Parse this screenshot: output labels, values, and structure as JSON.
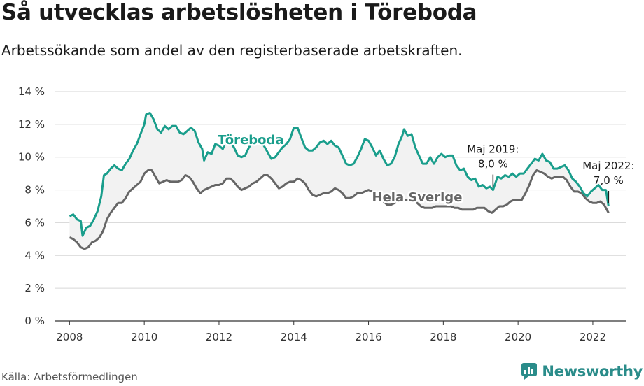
{
  "header": {
    "title": "Så utvecklas arbetslösheten i Töreboda",
    "subtitle": "Arbetssökande som andel av den registerbaserade arbetskraften."
  },
  "footer": {
    "source": "Källa: Arbetsförmedlingen",
    "brand": "Newsworthy",
    "brand_color": "#2a8c8a"
  },
  "colors": {
    "toreboda": "#1a9e8c",
    "sverige": "#666666",
    "band": "#f2f2f2",
    "grid": "#d6d6d6"
  },
  "chart_data": {
    "type": "line",
    "title": "Så utvecklas arbetslösheten i Töreboda",
    "subtitle": "Arbetssökande som andel av den registerbaserade arbetskraften.",
    "xlabel": "",
    "ylabel": "",
    "xlim": [
      2007.6,
      2022.9
    ],
    "ylim": [
      0,
      14
    ],
    "x_ticks": [
      2008,
      2010,
      2012,
      2014,
      2016,
      2018,
      2020,
      2022
    ],
    "x_tick_labels": [
      "2008",
      "2010",
      "2012",
      "2014",
      "2016",
      "2018",
      "2020",
      "2022"
    ],
    "y_ticks": [
      0,
      2,
      4,
      6,
      8,
      10,
      12,
      14
    ],
    "y_tick_labels": [
      "0 %",
      "2 %",
      "4 %",
      "6 %",
      "8 %",
      "10 %",
      "12 %",
      "14 %"
    ],
    "grid": true,
    "legend": "inline labels",
    "series": [
      {
        "name": "Töreboda",
        "points": [
          [
            2008.0,
            6.4
          ],
          [
            2008.1,
            6.5
          ],
          [
            2008.2,
            6.2
          ],
          [
            2008.3,
            6.1
          ],
          [
            2008.35,
            5.2
          ],
          [
            2008.45,
            5.7
          ],
          [
            2008.55,
            5.8
          ],
          [
            2008.65,
            6.2
          ],
          [
            2008.75,
            6.7
          ],
          [
            2008.85,
            7.6
          ],
          [
            2008.92,
            8.9
          ],
          [
            2009.0,
            9.0
          ],
          [
            2009.1,
            9.3
          ],
          [
            2009.2,
            9.5
          ],
          [
            2009.3,
            9.3
          ],
          [
            2009.4,
            9.2
          ],
          [
            2009.5,
            9.6
          ],
          [
            2009.6,
            9.9
          ],
          [
            2009.7,
            10.4
          ],
          [
            2009.8,
            10.8
          ],
          [
            2009.9,
            11.4
          ],
          [
            2010.0,
            12.0
          ],
          [
            2010.05,
            12.6
          ],
          [
            2010.15,
            12.7
          ],
          [
            2010.25,
            12.3
          ],
          [
            2010.35,
            11.7
          ],
          [
            2010.45,
            11.5
          ],
          [
            2010.55,
            11.9
          ],
          [
            2010.65,
            11.7
          ],
          [
            2010.75,
            11.9
          ],
          [
            2010.85,
            11.9
          ],
          [
            2010.95,
            11.5
          ],
          [
            2011.05,
            11.4
          ],
          [
            2011.15,
            11.6
          ],
          [
            2011.25,
            11.8
          ],
          [
            2011.35,
            11.6
          ],
          [
            2011.45,
            10.9
          ],
          [
            2011.55,
            10.5
          ],
          [
            2011.6,
            9.8
          ],
          [
            2011.7,
            10.3
          ],
          [
            2011.8,
            10.2
          ],
          [
            2011.9,
            10.8
          ],
          [
            2012.0,
            10.7
          ],
          [
            2012.1,
            10.5
          ],
          [
            2012.2,
            11.0
          ],
          [
            2012.3,
            10.9
          ],
          [
            2012.4,
            10.6
          ],
          [
            2012.5,
            10.1
          ],
          [
            2012.6,
            10.0
          ],
          [
            2012.7,
            10.1
          ],
          [
            2012.8,
            10.6
          ],
          [
            2012.9,
            10.9
          ],
          [
            2013.0,
            11.2
          ],
          [
            2013.1,
            11.0
          ],
          [
            2013.2,
            10.7
          ],
          [
            2013.3,
            10.3
          ],
          [
            2013.4,
            9.9
          ],
          [
            2013.5,
            10.0
          ],
          [
            2013.6,
            10.3
          ],
          [
            2013.7,
            10.6
          ],
          [
            2013.8,
            10.8
          ],
          [
            2013.9,
            11.1
          ],
          [
            2014.0,
            11.8
          ],
          [
            2014.1,
            11.8
          ],
          [
            2014.2,
            11.2
          ],
          [
            2014.3,
            10.6
          ],
          [
            2014.4,
            10.4
          ],
          [
            2014.5,
            10.4
          ],
          [
            2014.6,
            10.6
          ],
          [
            2014.7,
            10.9
          ],
          [
            2014.8,
            11.0
          ],
          [
            2014.9,
            10.8
          ],
          [
            2015.0,
            11.0
          ],
          [
            2015.1,
            10.7
          ],
          [
            2015.2,
            10.6
          ],
          [
            2015.3,
            10.1
          ],
          [
            2015.4,
            9.6
          ],
          [
            2015.5,
            9.5
          ],
          [
            2015.6,
            9.6
          ],
          [
            2015.7,
            10.0
          ],
          [
            2015.8,
            10.5
          ],
          [
            2015.9,
            11.1
          ],
          [
            2016.0,
            11.0
          ],
          [
            2016.1,
            10.6
          ],
          [
            2016.2,
            10.1
          ],
          [
            2016.3,
            10.4
          ],
          [
            2016.4,
            9.9
          ],
          [
            2016.5,
            9.5
          ],
          [
            2016.6,
            9.6
          ],
          [
            2016.7,
            10.0
          ],
          [
            2016.8,
            10.8
          ],
          [
            2016.9,
            11.3
          ],
          [
            2016.95,
            11.7
          ],
          [
            2017.05,
            11.3
          ],
          [
            2017.15,
            11.4
          ],
          [
            2017.25,
            10.6
          ],
          [
            2017.35,
            10.1
          ],
          [
            2017.45,
            9.6
          ],
          [
            2017.55,
            9.6
          ],
          [
            2017.65,
            10.0
          ],
          [
            2017.75,
            9.6
          ],
          [
            2017.85,
            10.0
          ],
          [
            2017.95,
            10.2
          ],
          [
            2018.05,
            10.0
          ],
          [
            2018.15,
            10.1
          ],
          [
            2018.25,
            10.1
          ],
          [
            2018.35,
            9.5
          ],
          [
            2018.45,
            9.2
          ],
          [
            2018.55,
            9.3
          ],
          [
            2018.65,
            8.8
          ],
          [
            2018.75,
            8.6
          ],
          [
            2018.85,
            8.7
          ],
          [
            2018.95,
            8.2
          ],
          [
            2019.05,
            8.3
          ],
          [
            2019.15,
            8.1
          ],
          [
            2019.25,
            8.2
          ],
          [
            2019.33,
            8.0
          ],
          [
            2019.45,
            8.8
          ],
          [
            2019.55,
            8.7
          ],
          [
            2019.65,
            8.9
          ],
          [
            2019.75,
            8.8
          ],
          [
            2019.85,
            9.0
          ],
          [
            2019.95,
            8.8
          ],
          [
            2020.05,
            9.0
          ],
          [
            2020.15,
            9.0
          ],
          [
            2020.25,
            9.3
          ],
          [
            2020.35,
            9.6
          ],
          [
            2020.45,
            9.9
          ],
          [
            2020.55,
            9.8
          ],
          [
            2020.65,
            10.2
          ],
          [
            2020.75,
            9.8
          ],
          [
            2020.85,
            9.7
          ],
          [
            2020.95,
            9.3
          ],
          [
            2021.05,
            9.3
          ],
          [
            2021.15,
            9.4
          ],
          [
            2021.25,
            9.5
          ],
          [
            2021.35,
            9.2
          ],
          [
            2021.45,
            8.7
          ],
          [
            2021.55,
            8.5
          ],
          [
            2021.65,
            8.2
          ],
          [
            2021.75,
            7.8
          ],
          [
            2021.85,
            7.6
          ],
          [
            2021.95,
            7.9
          ],
          [
            2022.05,
            8.1
          ],
          [
            2022.15,
            8.3
          ],
          [
            2022.25,
            8.0
          ],
          [
            2022.35,
            8.0
          ],
          [
            2022.42,
            7.0
          ]
        ]
      },
      {
        "name": "Hela Sverige",
        "points": [
          [
            2008.0,
            5.1
          ],
          [
            2008.1,
            5.0
          ],
          [
            2008.2,
            4.8
          ],
          [
            2008.3,
            4.5
          ],
          [
            2008.4,
            4.4
          ],
          [
            2008.5,
            4.5
          ],
          [
            2008.6,
            4.8
          ],
          [
            2008.7,
            4.9
          ],
          [
            2008.8,
            5.1
          ],
          [
            2008.9,
            5.5
          ],
          [
            2009.0,
            6.2
          ],
          [
            2009.1,
            6.6
          ],
          [
            2009.2,
            6.9
          ],
          [
            2009.3,
            7.2
          ],
          [
            2009.4,
            7.2
          ],
          [
            2009.5,
            7.5
          ],
          [
            2009.6,
            7.9
          ],
          [
            2009.7,
            8.1
          ],
          [
            2009.8,
            8.3
          ],
          [
            2009.9,
            8.5
          ],
          [
            2010.0,
            9.0
          ],
          [
            2010.1,
            9.2
          ],
          [
            2010.2,
            9.2
          ],
          [
            2010.3,
            8.8
          ],
          [
            2010.4,
            8.4
          ],
          [
            2010.5,
            8.5
          ],
          [
            2010.6,
            8.6
          ],
          [
            2010.7,
            8.5
          ],
          [
            2010.8,
            8.5
          ],
          [
            2010.9,
            8.5
          ],
          [
            2011.0,
            8.6
          ],
          [
            2011.1,
            8.9
          ],
          [
            2011.2,
            8.8
          ],
          [
            2011.3,
            8.5
          ],
          [
            2011.4,
            8.1
          ],
          [
            2011.5,
            7.8
          ],
          [
            2011.6,
            8.0
          ],
          [
            2011.7,
            8.1
          ],
          [
            2011.8,
            8.2
          ],
          [
            2011.9,
            8.3
          ],
          [
            2012.0,
            8.3
          ],
          [
            2012.1,
            8.4
          ],
          [
            2012.2,
            8.7
          ],
          [
            2012.3,
            8.7
          ],
          [
            2012.4,
            8.5
          ],
          [
            2012.5,
            8.2
          ],
          [
            2012.6,
            8.0
          ],
          [
            2012.7,
            8.1
          ],
          [
            2012.8,
            8.2
          ],
          [
            2012.9,
            8.4
          ],
          [
            2013.0,
            8.5
          ],
          [
            2013.1,
            8.7
          ],
          [
            2013.2,
            8.9
          ],
          [
            2013.3,
            8.9
          ],
          [
            2013.4,
            8.7
          ],
          [
            2013.5,
            8.4
          ],
          [
            2013.6,
            8.1
          ],
          [
            2013.7,
            8.2
          ],
          [
            2013.8,
            8.4
          ],
          [
            2013.9,
            8.5
          ],
          [
            2014.0,
            8.5
          ],
          [
            2014.1,
            8.7
          ],
          [
            2014.2,
            8.6
          ],
          [
            2014.3,
            8.4
          ],
          [
            2014.4,
            8.0
          ],
          [
            2014.5,
            7.7
          ],
          [
            2014.6,
            7.6
          ],
          [
            2014.7,
            7.7
          ],
          [
            2014.8,
            7.8
          ],
          [
            2014.9,
            7.8
          ],
          [
            2015.0,
            7.9
          ],
          [
            2015.1,
            8.1
          ],
          [
            2015.2,
            8.0
          ],
          [
            2015.3,
            7.8
          ],
          [
            2015.4,
            7.5
          ],
          [
            2015.5,
            7.5
          ],
          [
            2015.6,
            7.6
          ],
          [
            2015.7,
            7.8
          ],
          [
            2015.8,
            7.8
          ],
          [
            2015.9,
            7.9
          ],
          [
            2016.0,
            8.0
          ],
          [
            2016.1,
            7.9
          ],
          [
            2016.2,
            7.7
          ],
          [
            2016.3,
            7.5
          ],
          [
            2016.4,
            7.3
          ],
          [
            2016.5,
            7.1
          ],
          [
            2016.6,
            7.1
          ],
          [
            2016.7,
            7.2
          ],
          [
            2016.8,
            7.3
          ],
          [
            2016.9,
            7.4
          ],
          [
            2017.0,
            7.4
          ],
          [
            2017.1,
            7.4
          ],
          [
            2017.2,
            7.3
          ],
          [
            2017.3,
            7.2
          ],
          [
            2017.4,
            7.0
          ],
          [
            2017.5,
            6.9
          ],
          [
            2017.6,
            6.9
          ],
          [
            2017.7,
            6.9
          ],
          [
            2017.8,
            7.0
          ],
          [
            2017.9,
            7.0
          ],
          [
            2018.0,
            7.0
          ],
          [
            2018.1,
            7.0
          ],
          [
            2018.2,
            7.0
          ],
          [
            2018.3,
            6.9
          ],
          [
            2018.4,
            6.9
          ],
          [
            2018.5,
            6.8
          ],
          [
            2018.6,
            6.8
          ],
          [
            2018.7,
            6.8
          ],
          [
            2018.8,
            6.8
          ],
          [
            2018.9,
            6.9
          ],
          [
            2019.0,
            6.9
          ],
          [
            2019.1,
            6.9
          ],
          [
            2019.2,
            6.7
          ],
          [
            2019.3,
            6.6
          ],
          [
            2019.4,
            6.8
          ],
          [
            2019.5,
            7.0
          ],
          [
            2019.6,
            7.0
          ],
          [
            2019.7,
            7.1
          ],
          [
            2019.8,
            7.3
          ],
          [
            2019.9,
            7.4
          ],
          [
            2020.0,
            7.4
          ],
          [
            2020.1,
            7.4
          ],
          [
            2020.2,
            7.8
          ],
          [
            2020.3,
            8.3
          ],
          [
            2020.4,
            8.9
          ],
          [
            2020.5,
            9.2
          ],
          [
            2020.6,
            9.1
          ],
          [
            2020.7,
            9.0
          ],
          [
            2020.8,
            8.8
          ],
          [
            2020.9,
            8.7
          ],
          [
            2021.0,
            8.8
          ],
          [
            2021.1,
            8.8
          ],
          [
            2021.2,
            8.8
          ],
          [
            2021.3,
            8.6
          ],
          [
            2021.4,
            8.2
          ],
          [
            2021.5,
            7.9
          ],
          [
            2021.6,
            7.9
          ],
          [
            2021.7,
            7.8
          ],
          [
            2021.8,
            7.5
          ],
          [
            2021.9,
            7.3
          ],
          [
            2022.0,
            7.2
          ],
          [
            2022.1,
            7.2
          ],
          [
            2022.2,
            7.3
          ],
          [
            2022.3,
            7.1
          ],
          [
            2022.42,
            6.6
          ]
        ]
      }
    ],
    "annotations": [
      {
        "line1": "Maj 2019:",
        "line2": "8,0 %",
        "x": 2019.33,
        "y": 8.0
      },
      {
        "line1": "Maj 2022:",
        "line2": "7,0 %",
        "x": 2022.42,
        "y": 7.0
      }
    ],
    "series_labels": [
      {
        "text": "Töreboda",
        "x": 2012.85,
        "y": 10.8
      },
      {
        "text": "Hela Sverige",
        "x": 2017.3,
        "y": 7.3
      }
    ]
  }
}
